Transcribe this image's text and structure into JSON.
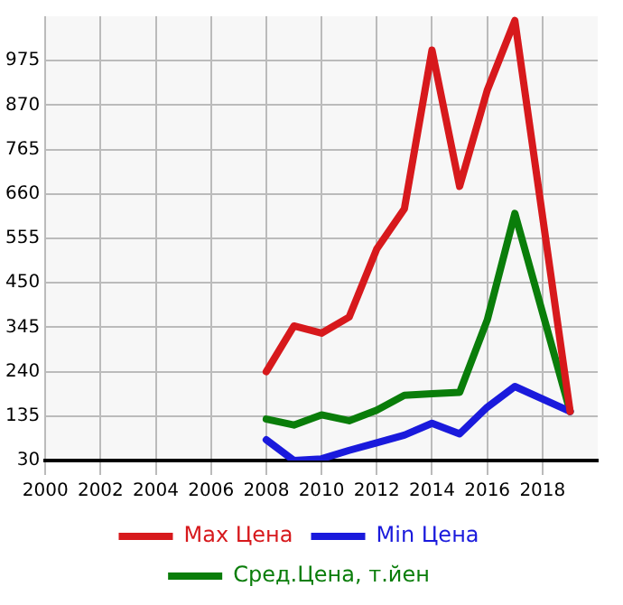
{
  "chart_data": {
    "type": "line",
    "xlim": [
      2000,
      2020
    ],
    "xticks": [
      2000,
      2002,
      2004,
      2006,
      2008,
      2010,
      2012,
      2014,
      2016,
      2018
    ],
    "ylim": [
      30,
      1080
    ],
    "yticks": [
      30,
      135,
      240,
      345,
      450,
      555,
      660,
      765,
      870,
      975
    ],
    "grid": true,
    "legend": "bottom",
    "marker": "none",
    "line_style": "solid",
    "series": [
      {
        "name": "Max Цена",
        "color": "#d7191c",
        "x": [
          2008,
          2009,
          2010,
          2011,
          2012,
          2013,
          2014,
          2015,
          2016,
          2017,
          2019
        ],
        "values": [
          240,
          348,
          331,
          369,
          530,
          625,
          1000,
          678,
          905,
          1070,
          146
        ]
      },
      {
        "name": "Min Цена",
        "color": "#1a1adc",
        "x": [
          2008,
          2009,
          2010,
          2011,
          2012,
          2013,
          2014,
          2015,
          2016,
          2017,
          2019
        ],
        "values": [
          79,
          30,
          34,
          54,
          72,
          90,
          118,
          93,
          156,
          205,
          146
        ]
      },
      {
        "name": "Сред.Цена, т.йен",
        "color": "#0a7d0a",
        "x": [
          2008,
          2009,
          2010,
          2011,
          2012,
          2013,
          2014,
          2015,
          2016,
          2017,
          2019
        ],
        "values": [
          128,
          114,
          138,
          124,
          149,
          184,
          188,
          191,
          362,
          614,
          146
        ]
      }
    ]
  }
}
